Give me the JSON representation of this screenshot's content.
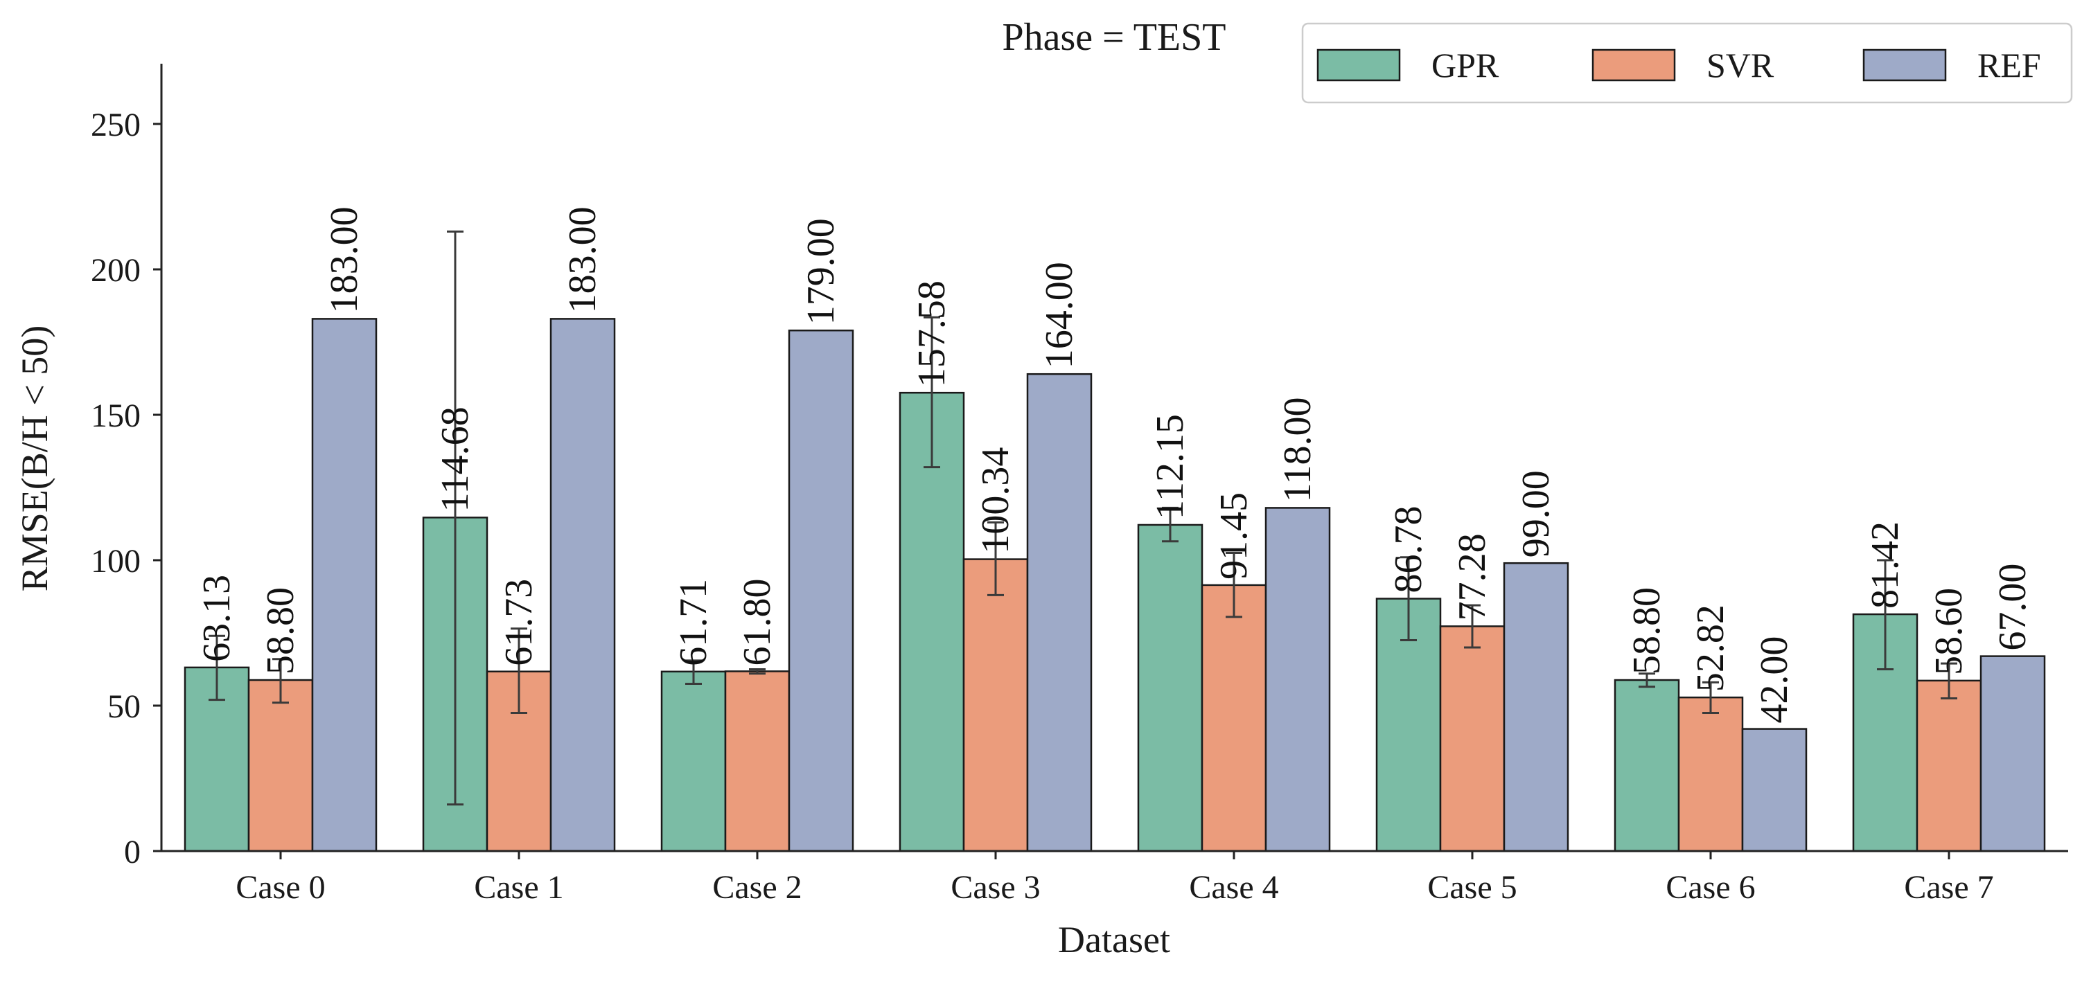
{
  "chart_data": {
    "type": "bar",
    "title": "Phase = TEST",
    "xlabel": "Dataset",
    "ylabel": "RMSE(B/H < 50)",
    "ylim": [
      0,
      270
    ],
    "yticks": [
      0,
      50,
      100,
      150,
      200,
      250
    ],
    "legend_placement": "top-right",
    "categories": [
      "Case 0",
      "Case 1",
      "Case 2",
      "Case 3",
      "Case 4",
      "Case 5",
      "Case 6",
      "Case 7"
    ],
    "series": [
      {
        "name": "GPR",
        "color": "#7bbca5",
        "values": [
          63.13,
          114.68,
          61.71,
          157.58,
          112.15,
          86.78,
          58.8,
          81.42
        ],
        "labels": [
          "63.13",
          "114.68",
          "61.71",
          "157.58",
          "112.15",
          "86.78",
          "58.80",
          "81.42"
        ],
        "err_low": [
          52,
          16,
          57.5,
          132,
          106.5,
          72.5,
          56.5,
          62.5
        ],
        "err_high": [
          74,
          213,
          65.5,
          183.5,
          118,
          101,
          61,
          100
        ]
      },
      {
        "name": "SVR",
        "color": "#eb9c7c",
        "values": [
          58.8,
          61.73,
          61.8,
          100.34,
          91.45,
          77.28,
          52.82,
          58.6
        ],
        "labels": [
          "58.80",
          "61.73",
          "61.80",
          "100.34",
          "91.45",
          "77.28",
          "52.82",
          "58.60"
        ],
        "err_low": [
          51,
          47.5,
          61,
          88,
          80.5,
          70,
          47.5,
          52.5
        ],
        "err_high": [
          66,
          76.5,
          62.5,
          113,
          102.5,
          84.5,
          58,
          64.5
        ]
      },
      {
        "name": "REF",
        "color": "#9eaac8",
        "values": [
          183.0,
          183.0,
          179.0,
          164.0,
          118.0,
          99.0,
          42.0,
          67.0
        ],
        "labels": [
          "183.00",
          "183.00",
          "179.00",
          "164.00",
          "118.00",
          "99.00",
          "42.00",
          "67.00"
        ]
      }
    ]
  }
}
